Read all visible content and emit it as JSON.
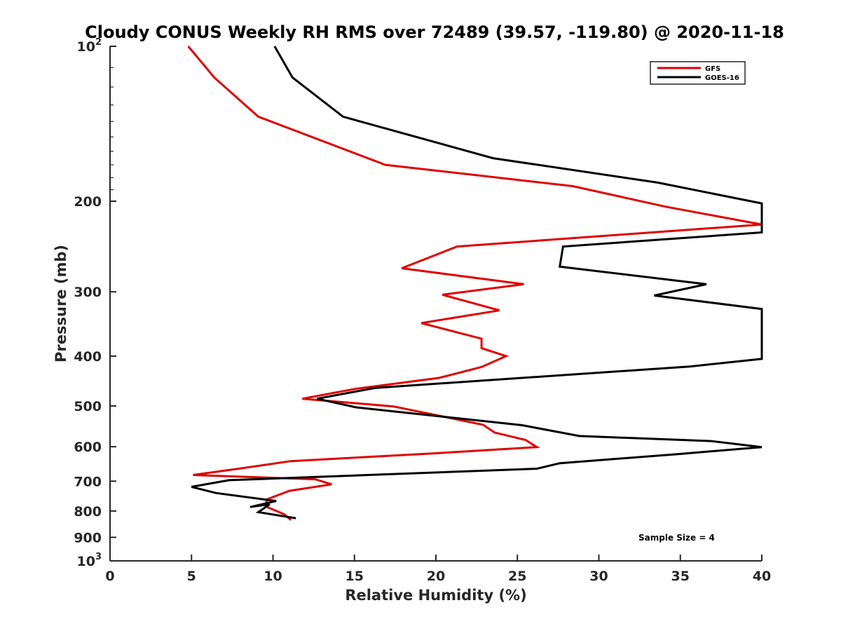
{
  "chart_data": {
    "type": "line",
    "title": "Cloudy CONUS Weekly RH RMS over 72489 (39.57, -119.80) @ 2020-11-18",
    "xlabel": "Relative Humidity (%)",
    "ylabel": "Pressure (mb)",
    "xlim": [
      0,
      40
    ],
    "ylim": [
      100,
      1000
    ],
    "y_scale": "log",
    "y_reversed": true,
    "x_ticks": [
      0,
      5,
      10,
      15,
      20,
      25,
      30,
      35,
      40
    ],
    "y_ticks": [
      {
        "value": 100,
        "label": "10",
        "sup": "2"
      },
      {
        "value": 200,
        "label": "200",
        "sup": ""
      },
      {
        "value": 300,
        "label": "300",
        "sup": ""
      },
      {
        "value": 400,
        "label": "400",
        "sup": ""
      },
      {
        "value": 500,
        "label": "500",
        "sup": ""
      },
      {
        "value": 600,
        "label": "600",
        "sup": ""
      },
      {
        "value": 700,
        "label": "700",
        "sup": ""
      },
      {
        "value": 800,
        "label": "800",
        "sup": ""
      },
      {
        "value": 900,
        "label": "900",
        "sup": ""
      },
      {
        "value": 1000,
        "label": "10",
        "sup": "3"
      }
    ],
    "grid": false,
    "legend_position": "top-right",
    "annotation": "Sample Size = 4",
    "series": [
      {
        "name": "GFS",
        "color": "#e00000",
        "x": [
          4.8,
          6.4,
          9.1,
          16.9,
          28.4,
          34.1,
          40,
          21.3,
          17.9,
          25.4,
          20.4,
          23.9,
          19.1,
          22.8,
          22.8,
          24.3,
          22.8,
          20.2,
          15.1,
          11.8,
          17.4,
          22.9,
          23.6,
          25.5,
          26.2,
          19.9,
          11.1,
          7.9,
          5.1,
          12.6,
          13.6,
          11.0,
          9.6,
          9.6,
          10.7,
          11.1
        ],
        "y": [
          100,
          115,
          137,
          170,
          187,
          205,
          222,
          245,
          270,
          290,
          304,
          326,
          345,
          370,
          386,
          400,
          420,
          441,
          463,
          484,
          501,
          544,
          563,
          582,
          601,
          618,
          640,
          662,
          681,
          694,
          710,
          731,
          760,
          785,
          812,
          833
        ]
      },
      {
        "name": "GOES-16",
        "color": "#000000",
        "x": [
          10.1,
          11.2,
          14.3,
          23.5,
          33.6,
          40,
          40,
          27.8,
          27.6,
          36.6,
          33.4,
          40,
          40,
          40,
          35.6,
          16.3,
          12.7,
          15.1,
          25.3,
          28.8,
          36.9,
          40,
          34.9,
          27.6,
          26.2,
          7.3,
          5.0,
          6.5,
          10.2,
          8.6,
          9.8,
          9.1,
          11.4
        ],
        "y": [
          100,
          115,
          137,
          165,
          184,
          202,
          230,
          245,
          268,
          290,
          305,
          324,
          330,
          405,
          419,
          461,
          484,
          503,
          545,
          572,
          585,
          601,
          620,
          646,
          662,
          697,
          718,
          738,
          765,
          786,
          776,
          804,
          826
        ]
      }
    ]
  }
}
